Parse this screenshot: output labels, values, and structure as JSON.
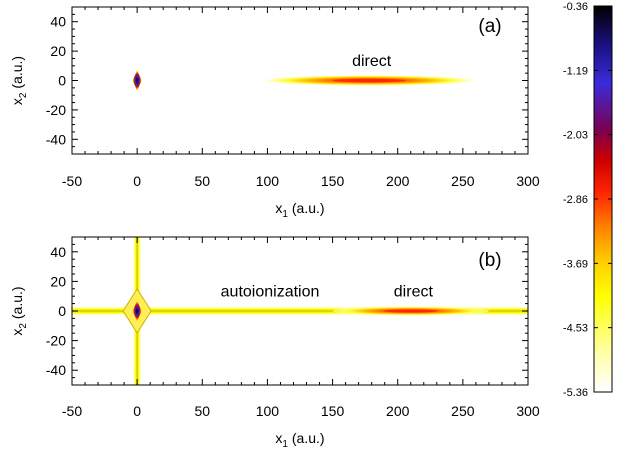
{
  "chart_data": [
    {
      "type": "heatmap",
      "panel_label": "(a)",
      "xlabel": "x",
      "xlabel_sub": "1",
      "xlabel_unit": "(a.u.)",
      "ylabel": "x",
      "ylabel_sub": "2",
      "ylabel_unit": "(a.u.)",
      "xlim": [
        -50,
        300
      ],
      "ylim": [
        -50,
        50
      ],
      "xticks": [
        -50,
        0,
        50,
        100,
        150,
        200,
        250,
        300
      ],
      "yticks": [
        -40,
        -20,
        0,
        20,
        40
      ],
      "annotations": [
        {
          "text": "direct",
          "x": 180,
          "y": 7
        }
      ],
      "features": [
        {
          "kind": "peak",
          "x": 0,
          "y": 0,
          "width": 7,
          "height": 14,
          "peak_log": -0.36
        },
        {
          "kind": "streak",
          "x_start": 100,
          "x_end": 260,
          "center_x": 178,
          "y": 0,
          "half_width": 3.5,
          "peak_log": -2.8
        }
      ]
    },
    {
      "type": "heatmap",
      "panel_label": "(b)",
      "xlabel": "x",
      "xlabel_sub": "1",
      "xlabel_unit": "(a.u.)",
      "ylabel": "x",
      "ylabel_sub": "2",
      "ylabel_unit": "(a.u.)",
      "xlim": [
        -50,
        300
      ],
      "ylim": [
        -50,
        50
      ],
      "xticks": [
        -50,
        0,
        50,
        100,
        150,
        200,
        250,
        300
      ],
      "yticks": [
        -40,
        -20,
        0,
        20,
        40
      ],
      "annotations": [
        {
          "text": "autoionization",
          "x": 102,
          "y": 7
        },
        {
          "text": "direct",
          "x": 212,
          "y": 7
        }
      ],
      "features": [
        {
          "kind": "peak",
          "x": 0,
          "y": 0,
          "width": 7,
          "height": 14,
          "peak_log": -0.36
        },
        {
          "kind": "horizontal-band",
          "x_start": -50,
          "x_end": 300,
          "y": 0,
          "half_width": 3,
          "peak_log": -4.0
        },
        {
          "kind": "vertical-band",
          "x": 0,
          "y_start": -50,
          "y_end": 50,
          "half_width": 3,
          "peak_log": -4.0
        },
        {
          "kind": "streak",
          "x_start": 150,
          "x_end": 270,
          "center_x": 210,
          "y": 0,
          "half_width": 3,
          "peak_log": -2.8
        }
      ]
    }
  ],
  "colorbar": {
    "ticks": [
      "-0.36",
      "-1.19",
      "-2.03",
      "-2.86",
      "-3.69",
      "-4.53",
      "-5.36"
    ],
    "range": [
      -5.36,
      -0.36
    ],
    "colors": [
      "#ffffff",
      "#ffff99",
      "#ffff00",
      "#ffcc00",
      "#ff8800",
      "#ff2200",
      "#cc0000",
      "#7a0050",
      "#3b2bdb",
      "#1a1080",
      "#000000"
    ]
  }
}
